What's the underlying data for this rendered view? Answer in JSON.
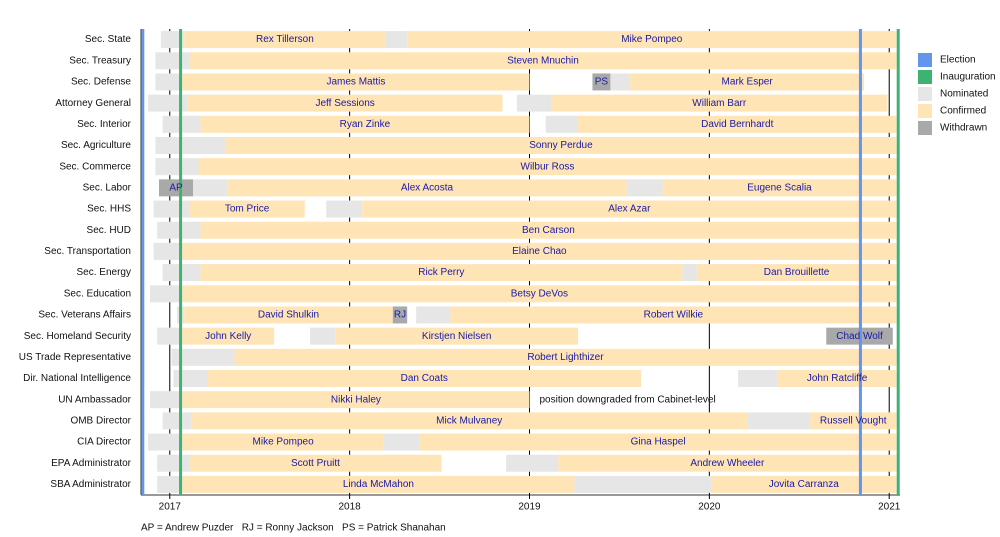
{
  "chart_data": {
    "type": "timeline",
    "xlim": [
      2016.84,
      2021.06
    ],
    "xticks": [
      2017,
      2018,
      2019,
      2020,
      2021
    ],
    "grid": true,
    "markers": [
      {
        "name": "Election",
        "color": "#6495ed",
        "values": [
          2016.85,
          2020.84
        ]
      },
      {
        "name": "Inauguration",
        "color": "#3cb371",
        "values": [
          2017.06,
          2021.05
        ]
      }
    ],
    "statuses": [
      {
        "name": "Nominated",
        "color": "#e6e6e6"
      },
      {
        "name": "Confirmed",
        "color": "#ffe4b5"
      },
      {
        "name": "Withdrawn",
        "color": "#a9a9a9"
      }
    ],
    "legend_position": "right",
    "rows": [
      {
        "name": "Sec. State",
        "segments": [
          {
            "start": 2016.95,
            "end": 2017.08,
            "status": "Nominated"
          },
          {
            "start": 2017.08,
            "end": 2018.2,
            "status": "Confirmed",
            "label": "Rex Tillerson"
          },
          {
            "start": 2018.2,
            "end": 2018.32,
            "status": "Nominated"
          },
          {
            "start": 2018.32,
            "end": 2021.04,
            "status": "Confirmed",
            "label": "Mike Pompeo"
          }
        ]
      },
      {
        "name": "Sec. Treasury",
        "segments": [
          {
            "start": 2016.92,
            "end": 2017.11,
            "status": "Nominated"
          },
          {
            "start": 2017.11,
            "end": 2021.04,
            "status": "Confirmed",
            "label": "Steven Mnuchin"
          }
        ]
      },
      {
        "name": "Sec. Defense",
        "segments": [
          {
            "start": 2016.92,
            "end": 2017.07,
            "status": "Nominated"
          },
          {
            "start": 2017.07,
            "end": 2019.0,
            "status": "Confirmed",
            "label": "James Mattis"
          },
          {
            "start": 2019.35,
            "end": 2019.45,
            "status": "Withdrawn",
            "label": "PS"
          },
          {
            "start": 2019.45,
            "end": 2019.56,
            "status": "Nominated"
          },
          {
            "start": 2019.56,
            "end": 2020.86,
            "status": "Confirmed",
            "label": "Mark Esper"
          }
        ]
      },
      {
        "name": "Attorney General",
        "segments": [
          {
            "start": 2016.88,
            "end": 2017.1,
            "status": "Nominated"
          },
          {
            "start": 2017.1,
            "end": 2018.85,
            "status": "Confirmed",
            "label": "Jeff Sessions"
          },
          {
            "start": 2018.93,
            "end": 2019.12,
            "status": "Nominated"
          },
          {
            "start": 2019.12,
            "end": 2020.99,
            "status": "Confirmed",
            "label": "William Barr"
          }
        ]
      },
      {
        "name": "Sec. Interior",
        "segments": [
          {
            "start": 2016.96,
            "end": 2017.17,
            "status": "Nominated"
          },
          {
            "start": 2017.17,
            "end": 2019.0,
            "status": "Confirmed",
            "label": "Ryan Zinke"
          },
          {
            "start": 2019.09,
            "end": 2019.27,
            "status": "Nominated"
          },
          {
            "start": 2019.27,
            "end": 2021.04,
            "status": "Confirmed",
            "label": "David Bernhardt"
          }
        ]
      },
      {
        "name": "Sec. Agriculture",
        "segments": [
          {
            "start": 2016.92,
            "end": 2017.31,
            "status": "Nominated"
          },
          {
            "start": 2017.31,
            "end": 2021.04,
            "status": "Confirmed",
            "label": "Sonny Perdue"
          }
        ]
      },
      {
        "name": "Sec. Commerce",
        "segments": [
          {
            "start": 2016.92,
            "end": 2017.16,
            "status": "Nominated"
          },
          {
            "start": 2017.16,
            "end": 2021.04,
            "status": "Confirmed",
            "label": "Wilbur Ross"
          }
        ]
      },
      {
        "name": "Sec. Labor",
        "segments": [
          {
            "start": 2016.94,
            "end": 2017.13,
            "status": "Withdrawn",
            "label": "AP"
          },
          {
            "start": 2017.13,
            "end": 2017.32,
            "status": "Nominated"
          },
          {
            "start": 2017.32,
            "end": 2019.54,
            "status": "Confirmed",
            "label": "Alex Acosta"
          },
          {
            "start": 2019.54,
            "end": 2019.74,
            "status": "Nominated"
          },
          {
            "start": 2019.74,
            "end": 2021.04,
            "status": "Confirmed",
            "label": "Eugene Scalia"
          }
        ]
      },
      {
        "name": "Sec. HHS",
        "segments": [
          {
            "start": 2016.91,
            "end": 2017.11,
            "status": "Nominated"
          },
          {
            "start": 2017.11,
            "end": 2017.75,
            "status": "Confirmed",
            "label": "Tom Price"
          },
          {
            "start": 2017.87,
            "end": 2018.07,
            "status": "Nominated"
          },
          {
            "start": 2018.07,
            "end": 2021.04,
            "status": "Confirmed",
            "label": "Alex Azar"
          }
        ]
      },
      {
        "name": "Sec. HUD",
        "segments": [
          {
            "start": 2016.93,
            "end": 2017.17,
            "status": "Nominated"
          },
          {
            "start": 2017.17,
            "end": 2021.04,
            "status": "Confirmed",
            "label": "Ben Carson"
          }
        ]
      },
      {
        "name": "Sec. Transportation",
        "segments": [
          {
            "start": 2016.91,
            "end": 2017.07,
            "status": "Nominated"
          },
          {
            "start": 2017.07,
            "end": 2021.04,
            "status": "Confirmed",
            "label": "Elaine Chao"
          }
        ]
      },
      {
        "name": "Sec. Energy",
        "segments": [
          {
            "start": 2016.96,
            "end": 2017.17,
            "status": "Nominated"
          },
          {
            "start": 2017.17,
            "end": 2019.85,
            "status": "Confirmed",
            "label": "Rick Perry"
          },
          {
            "start": 2019.85,
            "end": 2019.93,
            "status": "Nominated"
          },
          {
            "start": 2019.93,
            "end": 2021.04,
            "status": "Confirmed",
            "label": "Dan Brouillette"
          }
        ]
      },
      {
        "name": "Sec. Education",
        "segments": [
          {
            "start": 2016.89,
            "end": 2017.07,
            "status": "Nominated"
          },
          {
            "start": 2017.07,
            "end": 2021.04,
            "status": "Confirmed",
            "label": "Betsy DeVos"
          }
        ]
      },
      {
        "name": "Sec. Veterans Affairs",
        "segments": [
          {
            "start": 2017.04,
            "end": 2017.08,
            "status": "Nominated"
          },
          {
            "start": 2017.08,
            "end": 2018.24,
            "status": "Confirmed",
            "label": "David Shulkin"
          },
          {
            "start": 2018.24,
            "end": 2018.32,
            "status": "Withdrawn",
            "label": "RJ"
          },
          {
            "start": 2018.37,
            "end": 2018.56,
            "status": "Nominated"
          },
          {
            "start": 2018.56,
            "end": 2021.04,
            "status": "Confirmed",
            "label": "Robert Wilkie"
          }
        ]
      },
      {
        "name": "Sec. Homeland Security",
        "segments": [
          {
            "start": 2016.93,
            "end": 2017.07,
            "status": "Nominated"
          },
          {
            "start": 2017.07,
            "end": 2017.58,
            "status": "Confirmed",
            "label": "John Kelly"
          },
          {
            "start": 2017.78,
            "end": 2017.92,
            "status": "Nominated"
          },
          {
            "start": 2017.92,
            "end": 2019.27,
            "status": "Confirmed",
            "label": "Kirstjen Nielsen"
          },
          {
            "start": 2020.65,
            "end": 2021.02,
            "status": "Withdrawn",
            "label": "Chad Wolf"
          }
        ]
      },
      {
        "name": "US Trade Representative",
        "segments": [
          {
            "start": 2017.01,
            "end": 2017.36,
            "status": "Nominated"
          },
          {
            "start": 2017.36,
            "end": 2021.04,
            "status": "Confirmed",
            "label": "Robert Lighthizer"
          }
        ]
      },
      {
        "name": "Dir. National Intelligence",
        "segments": [
          {
            "start": 2017.02,
            "end": 2017.21,
            "status": "Nominated"
          },
          {
            "start": 2017.21,
            "end": 2019.62,
            "status": "Confirmed",
            "label": "Dan Coats"
          },
          {
            "start": 2020.16,
            "end": 2020.38,
            "status": "Nominated"
          },
          {
            "start": 2020.38,
            "end": 2021.04,
            "status": "Confirmed",
            "label": "John Ratcliffe"
          }
        ]
      },
      {
        "name": "UN Ambassador",
        "note": "position downgraded from Cabinet-level",
        "segments": [
          {
            "start": 2016.89,
            "end": 2017.07,
            "status": "Nominated"
          },
          {
            "start": 2017.07,
            "end": 2019.0,
            "status": "Confirmed",
            "label": "Nikki Haley"
          }
        ]
      },
      {
        "name": "OMB Director",
        "segments": [
          {
            "start": 2016.96,
            "end": 2017.12,
            "status": "Nominated"
          },
          {
            "start": 2017.12,
            "end": 2020.21,
            "status": "Confirmed",
            "label": "Mick Mulvaney"
          },
          {
            "start": 2020.21,
            "end": 2020.56,
            "status": "Nominated"
          },
          {
            "start": 2020.56,
            "end": 2021.04,
            "status": "Confirmed",
            "label": "Russell Vought"
          }
        ]
      },
      {
        "name": "CIA Director",
        "segments": [
          {
            "start": 2016.88,
            "end": 2017.07,
            "status": "Nominated"
          },
          {
            "start": 2017.07,
            "end": 2018.19,
            "status": "Confirmed",
            "label": "Mike Pompeo"
          },
          {
            "start": 2018.19,
            "end": 2018.39,
            "status": "Nominated"
          },
          {
            "start": 2018.39,
            "end": 2021.04,
            "status": "Confirmed",
            "label": "Gina Haspel"
          }
        ]
      },
      {
        "name": "EPA Administrator",
        "segments": [
          {
            "start": 2016.93,
            "end": 2017.11,
            "status": "Nominated"
          },
          {
            "start": 2017.11,
            "end": 2018.51,
            "status": "Confirmed",
            "label": "Scott Pruitt"
          },
          {
            "start": 2018.87,
            "end": 2019.16,
            "status": "Nominated"
          },
          {
            "start": 2019.16,
            "end": 2021.04,
            "status": "Confirmed",
            "label": "Andrew Wheeler"
          }
        ]
      },
      {
        "name": "SBA Administrator",
        "segments": [
          {
            "start": 2016.93,
            "end": 2017.07,
            "status": "Nominated"
          },
          {
            "start": 2017.07,
            "end": 2019.25,
            "status": "Confirmed",
            "label": "Linda McMahon"
          },
          {
            "start": 2019.25,
            "end": 2020.01,
            "status": "Nominated"
          },
          {
            "start": 2020.01,
            "end": 2021.04,
            "status": "Confirmed",
            "label": "Jovita Carranza"
          }
        ]
      }
    ],
    "footnote": "AP = Andrew Puzder   RJ = Ronny Jackson   PS = Patrick Shanahan"
  }
}
